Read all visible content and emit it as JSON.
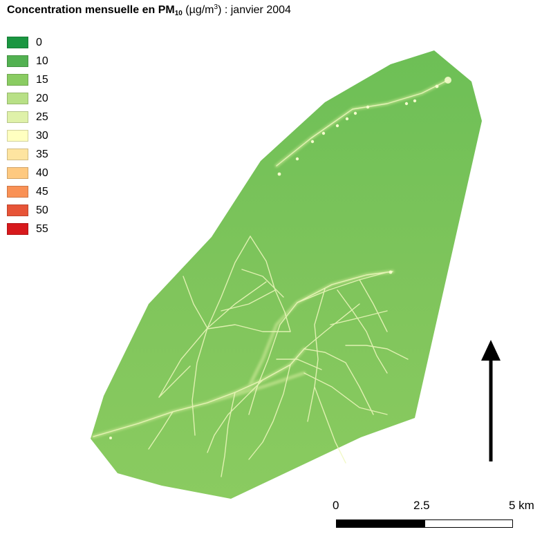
{
  "title": {
    "prefix": "Concentration mensuelle en PM",
    "subscript": "10",
    "unit_open": " (µg/m",
    "superscript": "3",
    "suffix": ") : janvier 2004"
  },
  "legend": [
    {
      "label": "0",
      "color": "#1a9641"
    },
    {
      "label": "10",
      "color": "#52b151"
    },
    {
      "label": "15",
      "color": "#8acc62"
    },
    {
      "label": "20",
      "color": "#b8e086"
    },
    {
      "label": "25",
      "color": "#dff1a9"
    },
    {
      "label": "30",
      "color": "#ffffc0"
    },
    {
      "label": "35",
      "color": "#fee4a0"
    },
    {
      "label": "40",
      "color": "#fec980"
    },
    {
      "label": "45",
      "color": "#f99155"
    },
    {
      "label": "50",
      "color": "#e75437"
    },
    {
      "label": "55",
      "color": "#d7191c"
    }
  ],
  "map": {
    "background_color": "#7cc45a",
    "road_color": "#eef7b8",
    "north_arrow_icon": "north-arrow-icon"
  },
  "scale": {
    "labels": [
      "0",
      "2.5",
      "5 km"
    ]
  }
}
